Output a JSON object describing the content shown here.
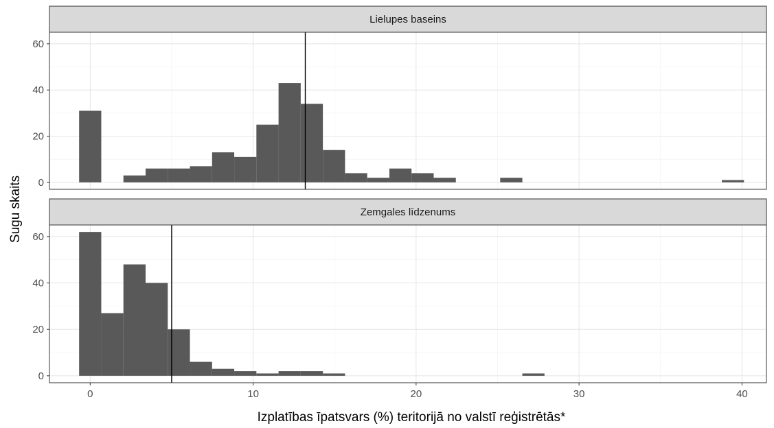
{
  "chart_data": {
    "type": "bar",
    "subtype": "faceted-histogram",
    "xlabel": "Izplatības īpatsvars (%) teritorijā no valstī reģistrētās*",
    "ylabel": "Sugu skaits",
    "xlim": [
      -2.5,
      41.5
    ],
    "ylim": [
      -3,
      65
    ],
    "x_ticks": [
      0,
      10,
      20,
      30,
      40
    ],
    "y_ticks": [
      0,
      20,
      40,
      60
    ],
    "grid": true,
    "bin_width": 1.36,
    "bar_color": "#595959",
    "panels": [
      {
        "title": "Lielupes baseins",
        "median_line": 13.2,
        "bins": [
          {
            "x": 0.0,
            "count": 31
          },
          {
            "x": 1.36,
            "count": 0
          },
          {
            "x": 2.72,
            "count": 3
          },
          {
            "x": 4.08,
            "count": 6
          },
          {
            "x": 5.44,
            "count": 6
          },
          {
            "x": 6.8,
            "count": 7
          },
          {
            "x": 8.16,
            "count": 13
          },
          {
            "x": 9.52,
            "count": 11
          },
          {
            "x": 10.88,
            "count": 25
          },
          {
            "x": 12.24,
            "count": 43
          },
          {
            "x": 13.6,
            "count": 34
          },
          {
            "x": 14.96,
            "count": 14
          },
          {
            "x": 16.32,
            "count": 4
          },
          {
            "x": 17.68,
            "count": 2
          },
          {
            "x": 19.04,
            "count": 6
          },
          {
            "x": 20.4,
            "count": 4
          },
          {
            "x": 21.76,
            "count": 2
          },
          {
            "x": 25.84,
            "count": 2
          },
          {
            "x": 39.44,
            "count": 1
          }
        ]
      },
      {
        "title": "Zemgales līdzenums",
        "median_line": 5.0,
        "bins": [
          {
            "x": 0.0,
            "count": 62
          },
          {
            "x": 1.36,
            "count": 27
          },
          {
            "x": 2.72,
            "count": 48
          },
          {
            "x": 4.08,
            "count": 40
          },
          {
            "x": 5.44,
            "count": 20
          },
          {
            "x": 6.8,
            "count": 6
          },
          {
            "x": 8.16,
            "count": 3
          },
          {
            "x": 9.52,
            "count": 2
          },
          {
            "x": 10.88,
            "count": 1
          },
          {
            "x": 12.24,
            "count": 2
          },
          {
            "x": 13.6,
            "count": 2
          },
          {
            "x": 14.96,
            "count": 1
          },
          {
            "x": 27.2,
            "count": 1
          }
        ]
      }
    ]
  }
}
